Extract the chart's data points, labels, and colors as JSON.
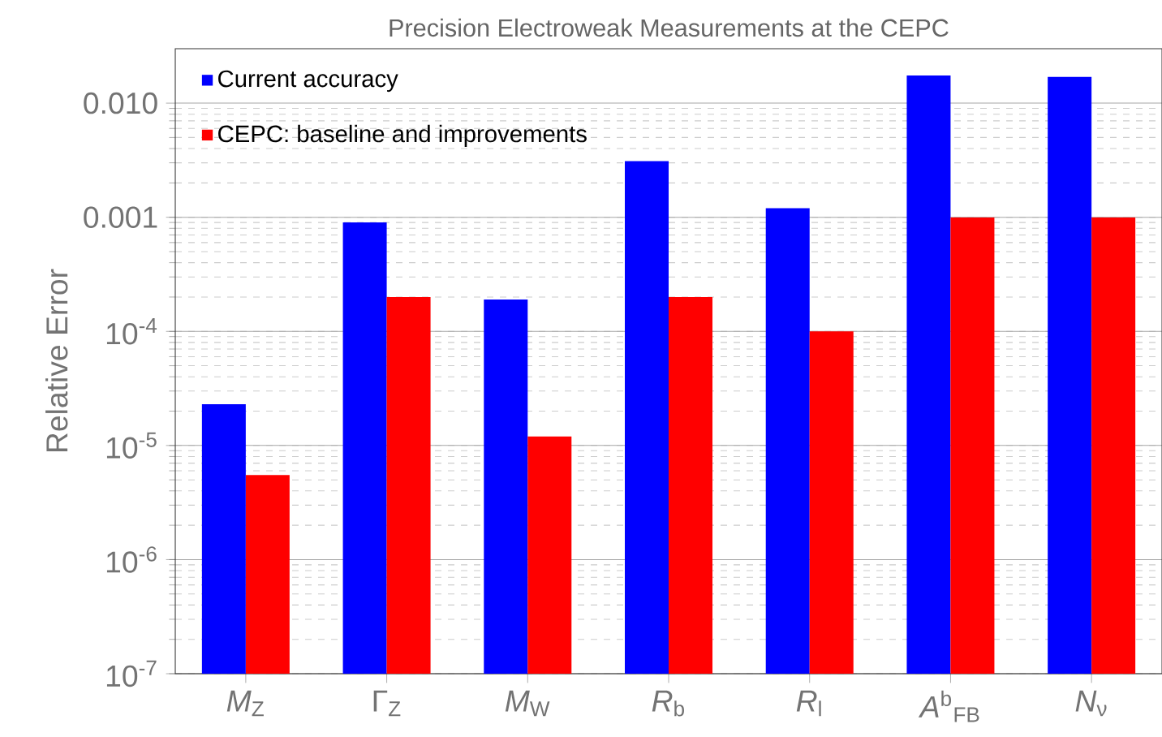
{
  "chart_data": {
    "type": "bar",
    "title": "Precision Electroweak Measurements at the CEPC",
    "ylabel": "Relative Error",
    "categories": [
      "*M*$_{Z}$",
      "Γ$_{Z}$",
      "*M*$_{W}$",
      "*R*$_{b}$",
      "*R*$_{l}$",
      "*A*$^{b}$$_{FB}$",
      "*N*$_{ν}$"
    ],
    "series": [
      {
        "name": "Current accuracy",
        "color": "#0000ff",
        "values": [
          2.3e-05,
          0.0009,
          0.00019,
          0.0031,
          0.0012,
          0.0175,
          0.017
        ]
      },
      {
        "name": "CEPC: baseline and improvements",
        "color": "#ff0000",
        "values": [
          5.5e-06,
          0.0002,
          1.2e-05,
          0.0002,
          0.0001,
          0.001,
          0.001
        ]
      }
    ],
    "log": "y",
    "ylim": [
      1e-07,
      0.03
    ],
    "yticks": [
      {
        "value": 1e-07,
        "label": "10$^{-7}$"
      },
      {
        "value": 1e-06,
        "label": "10$^{-6}$"
      },
      {
        "value": 1e-05,
        "label": "10$^{-5}$"
      },
      {
        "value": 0.0001,
        "label": "10$^{-4}$"
      },
      {
        "value": 0.001,
        "label": "0.001"
      },
      {
        "value": 0.01,
        "label": "0.010"
      }
    ],
    "grid": "y",
    "legend": "top left"
  }
}
